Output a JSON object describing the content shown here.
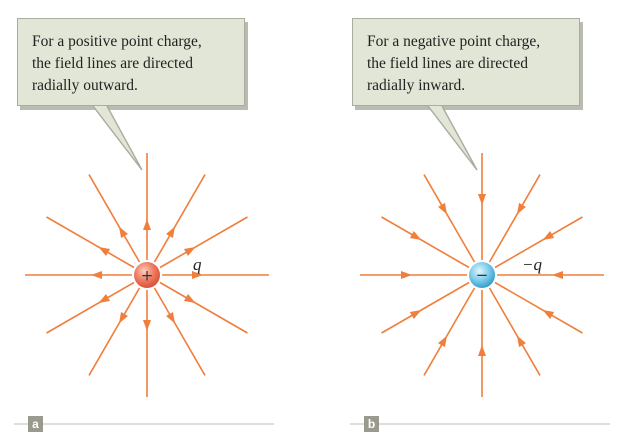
{
  "panel_a": {
    "callout": {
      "lines": [
        "For a positive point charge,",
        "the field lines are directed",
        "radially outward."
      ]
    },
    "charge_label": "q",
    "charge_sign": "+",
    "panel_tag": "a",
    "field_direction": "outward"
  },
  "panel_b": {
    "callout": {
      "lines": [
        "For a negative point charge,",
        "the field lines are directed",
        "radially inward."
      ]
    },
    "charge_label": "−q",
    "charge_sign": "−",
    "panel_tag": "b",
    "field_direction": "inward"
  },
  "colors": {
    "field_line": "#f07f3c",
    "positive_charge": "#e96a4f",
    "negative_charge": "#6cc3e3",
    "callout_bg": "#e2e6d6",
    "panel_tag_bg": "#9a9a8e"
  }
}
